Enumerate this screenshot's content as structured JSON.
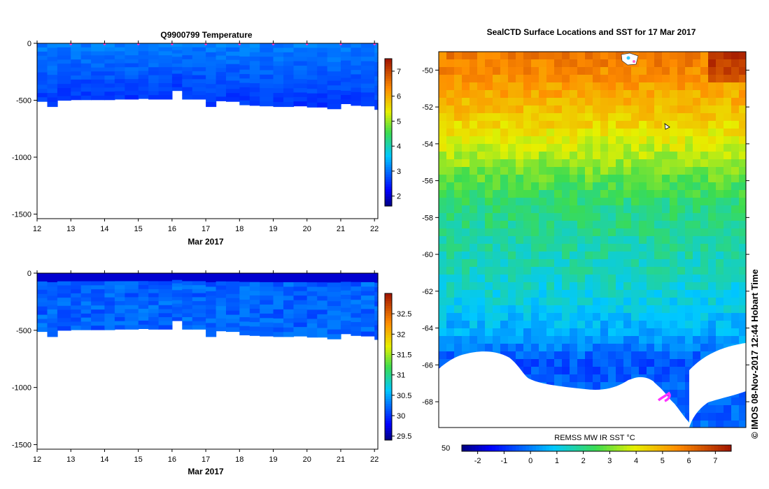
{
  "chart_data": [
    {
      "type": "heatmap",
      "title": "Q9900799  Temperature",
      "xlabel": "Mar 2017",
      "ylabel": "",
      "xlim": [
        12,
        22.1
      ],
      "ylim": [
        -1540,
        0
      ],
      "xticks": [
        "12",
        "13",
        "14",
        "15",
        "16",
        "17",
        "18",
        "19",
        "20",
        "21",
        "22"
      ],
      "yticks": [
        "0",
        "-500",
        "-1000",
        "-1500"
      ],
      "colorbar": {
        "ticks": [
          "2",
          "3",
          "4",
          "5",
          "6",
          "7"
        ],
        "range": [
          1.6,
          7.5
        ]
      },
      "profile_times": [
        12.0,
        12.3,
        12.6,
        13.0,
        13.3,
        13.6,
        14.0,
        14.3,
        14.6,
        15.0,
        15.3,
        15.6,
        16.0,
        16.3,
        16.6,
        17.0,
        17.3,
        17.6,
        18.0,
        18.3,
        18.6,
        19.0,
        19.3,
        19.6,
        20.0,
        20.3,
        20.6,
        21.0,
        21.3,
        21.6,
        22.0
      ],
      "max_depth": [
        -510,
        -555,
        -500,
        -495,
        -495,
        -495,
        -495,
        -490,
        -490,
        -485,
        -490,
        -490,
        -415,
        -490,
        -490,
        -555,
        -505,
        -510,
        -540,
        -545,
        -550,
        -555,
        -555,
        -550,
        -560,
        -560,
        -575,
        -530,
        -545,
        -550,
        -580
      ],
      "surface_markers_x": [
        13,
        14,
        15,
        16,
        17,
        18,
        19,
        20,
        21,
        22
      ],
      "value_range_shown": [
        2.2,
        3.4
      ]
    },
    {
      "type": "heatmap",
      "title": "",
      "xlabel": "Mar 2017",
      "ylabel": "",
      "xlim": [
        12,
        22.1
      ],
      "ylim": [
        -1540,
        0
      ],
      "xticks": [
        "12",
        "13",
        "14",
        "15",
        "16",
        "17",
        "18",
        "19",
        "20",
        "21",
        "22"
      ],
      "yticks": [
        "0",
        "-500",
        "-1000",
        "-1500"
      ],
      "colorbar": {
        "ticks": [
          "29.5",
          "30",
          "30.5",
          "31",
          "31.5",
          "32",
          "32.5"
        ],
        "range": [
          29.4,
          33.0
        ]
      },
      "profile_times": [
        12.0,
        12.3,
        12.6,
        13.0,
        13.3,
        13.6,
        14.0,
        14.3,
        14.6,
        15.0,
        15.3,
        15.6,
        16.0,
        16.3,
        16.6,
        17.0,
        17.3,
        17.6,
        18.0,
        18.3,
        18.6,
        19.0,
        19.3,
        19.6,
        20.0,
        20.3,
        20.6,
        21.0,
        21.3,
        21.6,
        22.0
      ],
      "max_depth": [
        -510,
        -555,
        -500,
        -495,
        -495,
        -495,
        -495,
        -490,
        -490,
        -485,
        -490,
        -490,
        -415,
        -490,
        -490,
        -555,
        -505,
        -510,
        -540,
        -545,
        -550,
        -555,
        -555,
        -550,
        -560,
        -560,
        -575,
        -530,
        -545,
        -550,
        -580
      ],
      "value_range_shown": [
        29.6,
        30.6
      ]
    },
    {
      "type": "heatmap",
      "title": "SealCTD Surface Locations and SST for 17 Mar 2017",
      "xlabel": "",
      "ylabel": "",
      "ylim": [
        -69.4,
        -49.0
      ],
      "yticks": [
        "-50",
        "-52",
        "-54",
        "-56",
        "-58",
        "-60",
        "-62",
        "-64",
        "-66",
        "-68"
      ],
      "colorbar": {
        "label": "REMSS MW IR SST °C",
        "ticks": [
          "-2",
          "-1",
          "0",
          "1",
          "2",
          "3",
          "4",
          "5",
          "6",
          "7"
        ],
        "range": [
          -2.6,
          7.6
        ]
      },
      "corner_label": "50",
      "credit": "©  IMOS 08-Nov-2017 12:44 Hobart Time",
      "sst_by_latitude": [
        {
          "lat": -49.5,
          "sst": 5.8
        },
        {
          "lat": -51.0,
          "sst": 5.2
        },
        {
          "lat": -52.5,
          "sst": 4.6
        },
        {
          "lat": -54.0,
          "sst": 3.8
        },
        {
          "lat": -55.5,
          "sst": 3.0
        },
        {
          "lat": -57.0,
          "sst": 2.2
        },
        {
          "lat": -59.0,
          "sst": 1.8
        },
        {
          "lat": -61.0,
          "sst": 1.5
        },
        {
          "lat": -63.0,
          "sst": 1.0
        },
        {
          "lat": -64.5,
          "sst": 0.4
        },
        {
          "lat": -66.0,
          "sst": -0.6
        },
        {
          "lat": -67.5,
          "sst": -0.3
        }
      ]
    }
  ]
}
